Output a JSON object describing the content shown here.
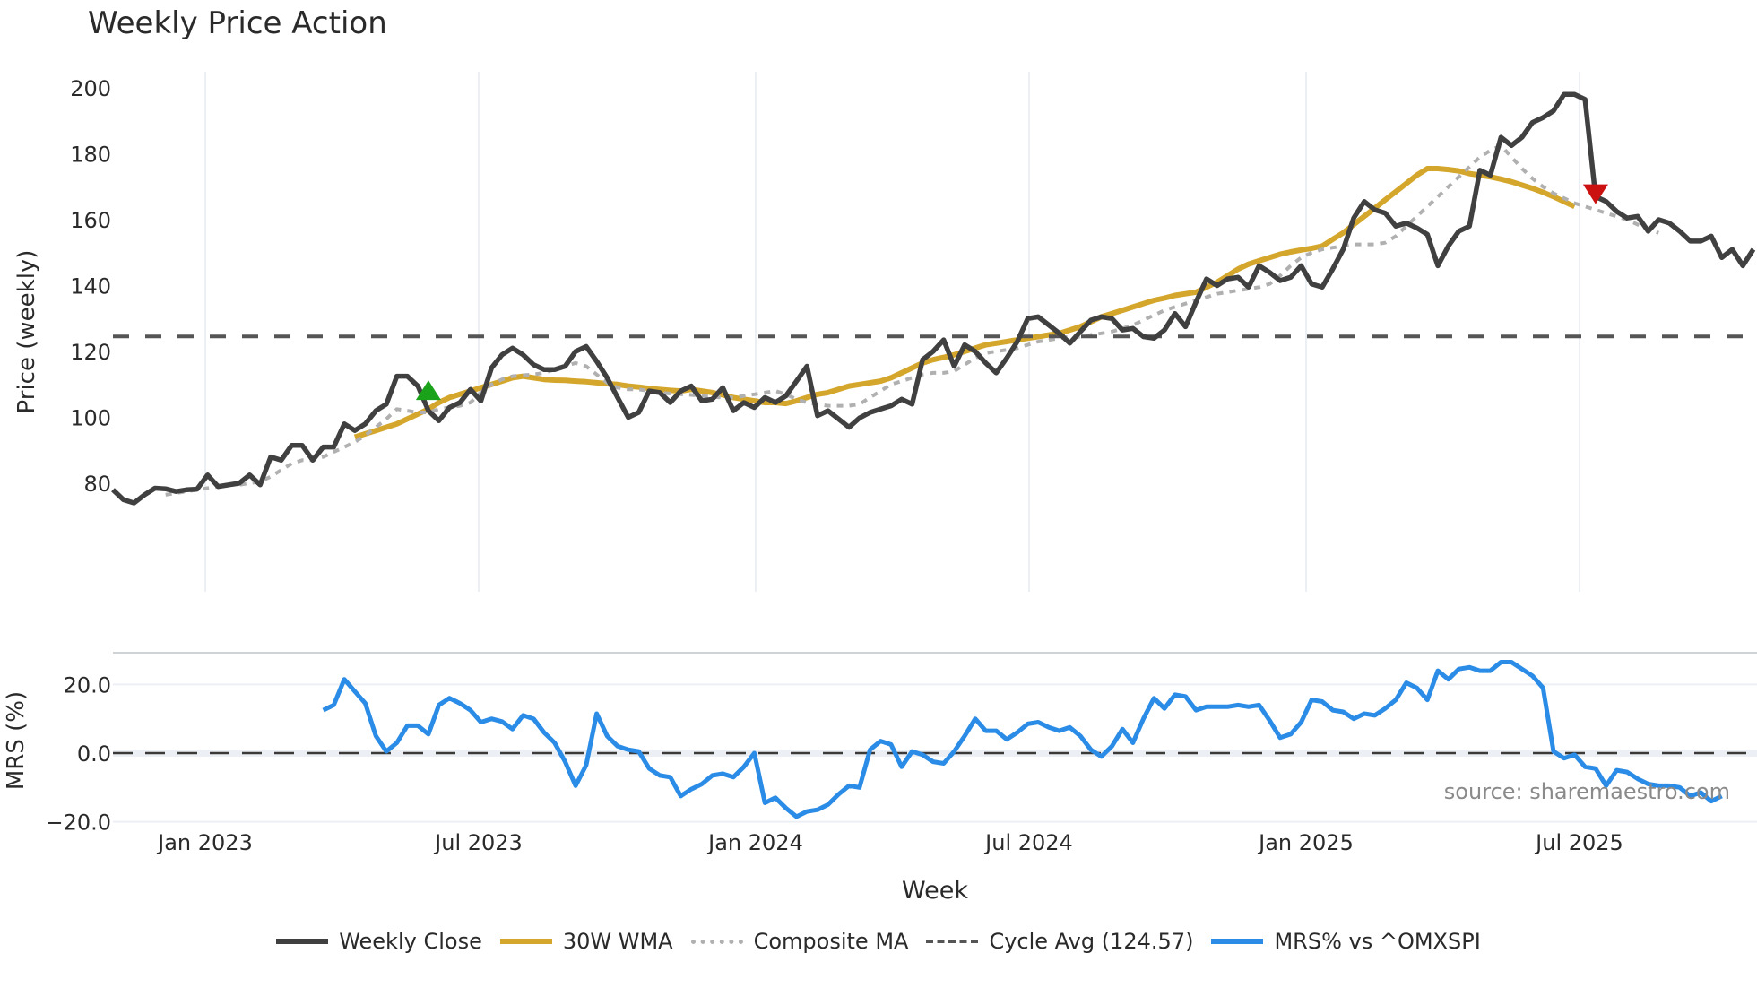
{
  "title": "Weekly Price Action",
  "source_text": "source: sharemaestro.com",
  "legend": [
    {
      "key": "close",
      "label": "Weekly Close",
      "color": "#404040",
      "style": "solid"
    },
    {
      "key": "wma",
      "label": "30W WMA",
      "color": "#d4a72c",
      "style": "solid"
    },
    {
      "key": "composite",
      "label": "Composite MA",
      "color": "#b0b0b0",
      "style": "dotted"
    },
    {
      "key": "cycle",
      "label": "Cycle Avg (124.57)",
      "color": "#555555",
      "style": "dashed"
    },
    {
      "key": "mrs",
      "label": "MRS% vs ^OMXSPI",
      "color": "#2a8ce6",
      "style": "solid"
    }
  ],
  "chart_data": [
    {
      "type": "line",
      "title": "Weekly Price Action",
      "xlabel": "",
      "ylabel": "Price (weekly)",
      "ylim": [
        70,
        205
      ],
      "yticks": [
        80,
        100,
        120,
        140,
        160,
        180,
        200
      ],
      "xtick_labels": [
        "Jan 2023",
        "Jul 2023",
        "Jan 2024",
        "Jul 2024",
        "Jan 2025",
        "Jul 2025"
      ],
      "grid": "vertical",
      "x_start_week": "2022-11-14",
      "cycle_avg": 124.57,
      "markers": [
        {
          "type": "buy",
          "shape": "triangle-up",
          "color": "#1aa31a",
          "week_index": 30,
          "value": 108
        },
        {
          "type": "sell",
          "shape": "triangle-down",
          "color": "#cc1111",
          "week_index": 141,
          "value": 168
        }
      ],
      "series": [
        {
          "name": "Weekly Close",
          "color": "#404040",
          "values": [
            78,
            75,
            74,
            76.5,
            78.5,
            78.3,
            77.5,
            78,
            78.2,
            82.5,
            79,
            79.5,
            80,
            82.5,
            79.5,
            88,
            87,
            91.5,
            91.5,
            87,
            91,
            91,
            98,
            96,
            98,
            102,
            104,
            112.5,
            112.5,
            109.5,
            102,
            99,
            103,
            104.5,
            108.5,
            105,
            115,
            119,
            121,
            119,
            116,
            114.5,
            114.5,
            115.5,
            120,
            121.5,
            117,
            112,
            106,
            100,
            101.5,
            108,
            107.5,
            104.5,
            108,
            109.5,
            105,
            105.5,
            109,
            102,
            104.5,
            103,
            106,
            104.5,
            106.5,
            111,
            115.5,
            100.5,
            102,
            99.5,
            97,
            99.8,
            101.5,
            102.5,
            103.5,
            105.5,
            104,
            117.5,
            120,
            123.5,
            115.5,
            122,
            120,
            116.5,
            113.5,
            118,
            123,
            130,
            130.5,
            128,
            125.5,
            122.5,
            126,
            129.5,
            130.5,
            130,
            126.5,
            127,
            124.5,
            124,
            126.5,
            131.5,
            127.5,
            135,
            142,
            140,
            142,
            142.5,
            139.5,
            146,
            144,
            141.5,
            142.5,
            146,
            140.5,
            139.5,
            145,
            151,
            160.5,
            165.5,
            163,
            162,
            158,
            159,
            157.5,
            155.5,
            146,
            152,
            156.5,
            158,
            175,
            173.5,
            185,
            182.5,
            185,
            189.5,
            191,
            193,
            198,
            198,
            196.5,
            167,
            165.5,
            162.5,
            160.5,
            161,
            156.5,
            160,
            159,
            156.5,
            153.5,
            153.5,
            155,
            148.5,
            151,
            146,
            151
          ]
        },
        {
          "name": "30W WMA",
          "color": "#d4a72c",
          "start_index": 23,
          "values": [
            94,
            95,
            96,
            97,
            98,
            99.5,
            101,
            102.5,
            104.5,
            106,
            107,
            108,
            109,
            110,
            111,
            112,
            112.5,
            112,
            111.5,
            111.3,
            111.2,
            111,
            110.8,
            110.5,
            110.2,
            110,
            109.5,
            109.2,
            108.8,
            108.5,
            108.2,
            108,
            108.5,
            108,
            107.5,
            106.8,
            106,
            105.5,
            105,
            104.5,
            104.5,
            104.2,
            105,
            106,
            107,
            107.5,
            108.5,
            109.5,
            110,
            110.5,
            111,
            112,
            113.5,
            115,
            116.5,
            117.5,
            118.2,
            119,
            120,
            121,
            122,
            122.5,
            123,
            123.5,
            124,
            124.5,
            125,
            125.5,
            126.5,
            127.5,
            129,
            130.5,
            131.5,
            132.5,
            133.5,
            134.5,
            135.5,
            136.2,
            137,
            137.5,
            138,
            139.5,
            141,
            143,
            145,
            146.5,
            147.5,
            148.5,
            149.5,
            150.2,
            150.8,
            151.3,
            152,
            154,
            156,
            158.5,
            161,
            163.5,
            166,
            168.5,
            171,
            173.5,
            175.5,
            175.5,
            175.2,
            174.8,
            174,
            173.5,
            173,
            172.3,
            171.5,
            170.5,
            169.5,
            168.3,
            167,
            165.5,
            164
          ]
        },
        {
          "name": "Composite MA",
          "color": "#b0b0b0",
          "start_index": 5,
          "values": [
            76.5,
            77,
            77.5,
            78,
            78.5,
            79,
            79.5,
            79.5,
            80,
            80.5,
            82,
            84,
            86,
            87,
            87,
            88,
            89.5,
            91,
            92.5,
            94.5,
            97,
            99.5,
            102.5,
            102,
            101.5,
            101.5,
            102.5,
            103,
            103.5,
            104.5,
            107.5,
            110,
            111.5,
            112.5,
            112.8,
            113,
            113.5,
            114.5,
            115.5,
            116.5,
            115.5,
            113,
            110.5,
            109,
            108.5,
            108.5,
            108,
            107.5,
            107.2,
            107,
            106.8,
            106.5,
            106.2,
            106,
            106,
            106.5,
            107,
            107.5,
            108,
            107,
            105.5,
            104.5,
            104,
            103.5,
            103.5,
            103.5,
            104,
            106,
            108,
            110,
            111,
            112,
            113,
            113.5,
            113.5,
            114,
            116,
            118,
            119.5,
            120,
            120.5,
            121,
            122,
            123,
            123.5,
            124,
            124.5,
            124.5,
            125,
            125.5,
            126,
            127,
            128,
            129.5,
            131,
            132.5,
            133.5,
            134.5,
            135.5,
            136.5,
            137.5,
            138,
            138.5,
            139,
            139.5,
            140.5,
            143,
            146,
            148.5,
            150,
            151,
            151.5,
            152,
            152.5,
            152.5,
            152.5,
            153,
            155,
            158,
            161,
            164,
            167,
            170,
            173,
            176,
            179,
            181,
            182.5,
            179,
            175.5,
            172.5,
            170,
            168,
            166.5,
            165,
            164,
            163,
            162,
            161,
            160,
            158.5,
            157,
            156
          ]
        },
        {
          "name": "Cycle Avg (124.57)",
          "color": "#555555",
          "constant": 124.57
        }
      ]
    },
    {
      "type": "line",
      "title": "",
      "xlabel": "Week",
      "ylabel": "MRS (%)",
      "ylim": [
        -22,
        30
      ],
      "yticks": [
        -20.0,
        0.0,
        20.0
      ],
      "ytick_labels": [
        "−20.0",
        "0.0",
        "20.0"
      ],
      "xtick_labels": [
        "Jan 2023",
        "Jul 2023",
        "Jan 2024",
        "Jul 2024",
        "Jan 2025",
        "Jul 2025"
      ],
      "zero_line": 0.0,
      "series": [
        {
          "name": "MRS% vs ^OMXSPI",
          "color": "#2a8ce6",
          "start_index": 20,
          "values": [
            12.5,
            14,
            21.5,
            18,
            14.5,
            5,
            0.5,
            3,
            8,
            8,
            5.5,
            14,
            16,
            14.5,
            12.5,
            9,
            10,
            9.2,
            7,
            11,
            10,
            6,
            3,
            -2.5,
            -9.5,
            -3.5,
            11.5,
            5,
            2,
            1,
            0.5,
            -4.5,
            -6.5,
            -7,
            -12.5,
            -10.5,
            -9,
            -6.5,
            -6,
            -7,
            -4,
            0,
            -14.5,
            -13,
            -16,
            -18.5,
            -17,
            -16.5,
            -15,
            -12,
            -9.5,
            -10,
            1,
            3.5,
            2.5,
            -4,
            0.5,
            -0.5,
            -2.5,
            -3,
            0.5,
            5,
            10,
            6.5,
            6.5,
            4,
            6,
            8.5,
            9,
            7.5,
            6.5,
            7.5,
            5,
            1,
            -1,
            2,
            7,
            3,
            10,
            16,
            13,
            17,
            16.5,
            12.5,
            13.5,
            13.5,
            13.5,
            14,
            13.5,
            14,
            9.5,
            4.5,
            5.5,
            9,
            15.5,
            15,
            12.5,
            12,
            10,
            11.5,
            11,
            13,
            15.5,
            20.5,
            19,
            15.5,
            24,
            21.5,
            24.5,
            25,
            24,
            24,
            26.5,
            26.5,
            24.5,
            22.5,
            19,
            0.5,
            -1.5,
            -0.5,
            -4,
            -4.5,
            -9.5,
            -5,
            -5.5,
            -7.5,
            -9,
            -9.5,
            -9.5,
            -10,
            -12.5,
            -11.5,
            -14,
            -12.5
          ]
        }
      ]
    }
  ],
  "axes": {
    "price_ylabel": "Price (weekly)",
    "price_yticks": [
      "200",
      "180",
      "160",
      "140",
      "120",
      "100",
      "80"
    ],
    "mrs_ylabel": "MRS (%)",
    "mrs_yticks": [
      "20.0",
      "0.0",
      "−20.0"
    ],
    "xlabel": "Week",
    "xticks": [
      "Jan 2023",
      "Jul 2023",
      "Jan 2024",
      "Jul 2024",
      "Jan 2025",
      "Jul 2025"
    ]
  }
}
